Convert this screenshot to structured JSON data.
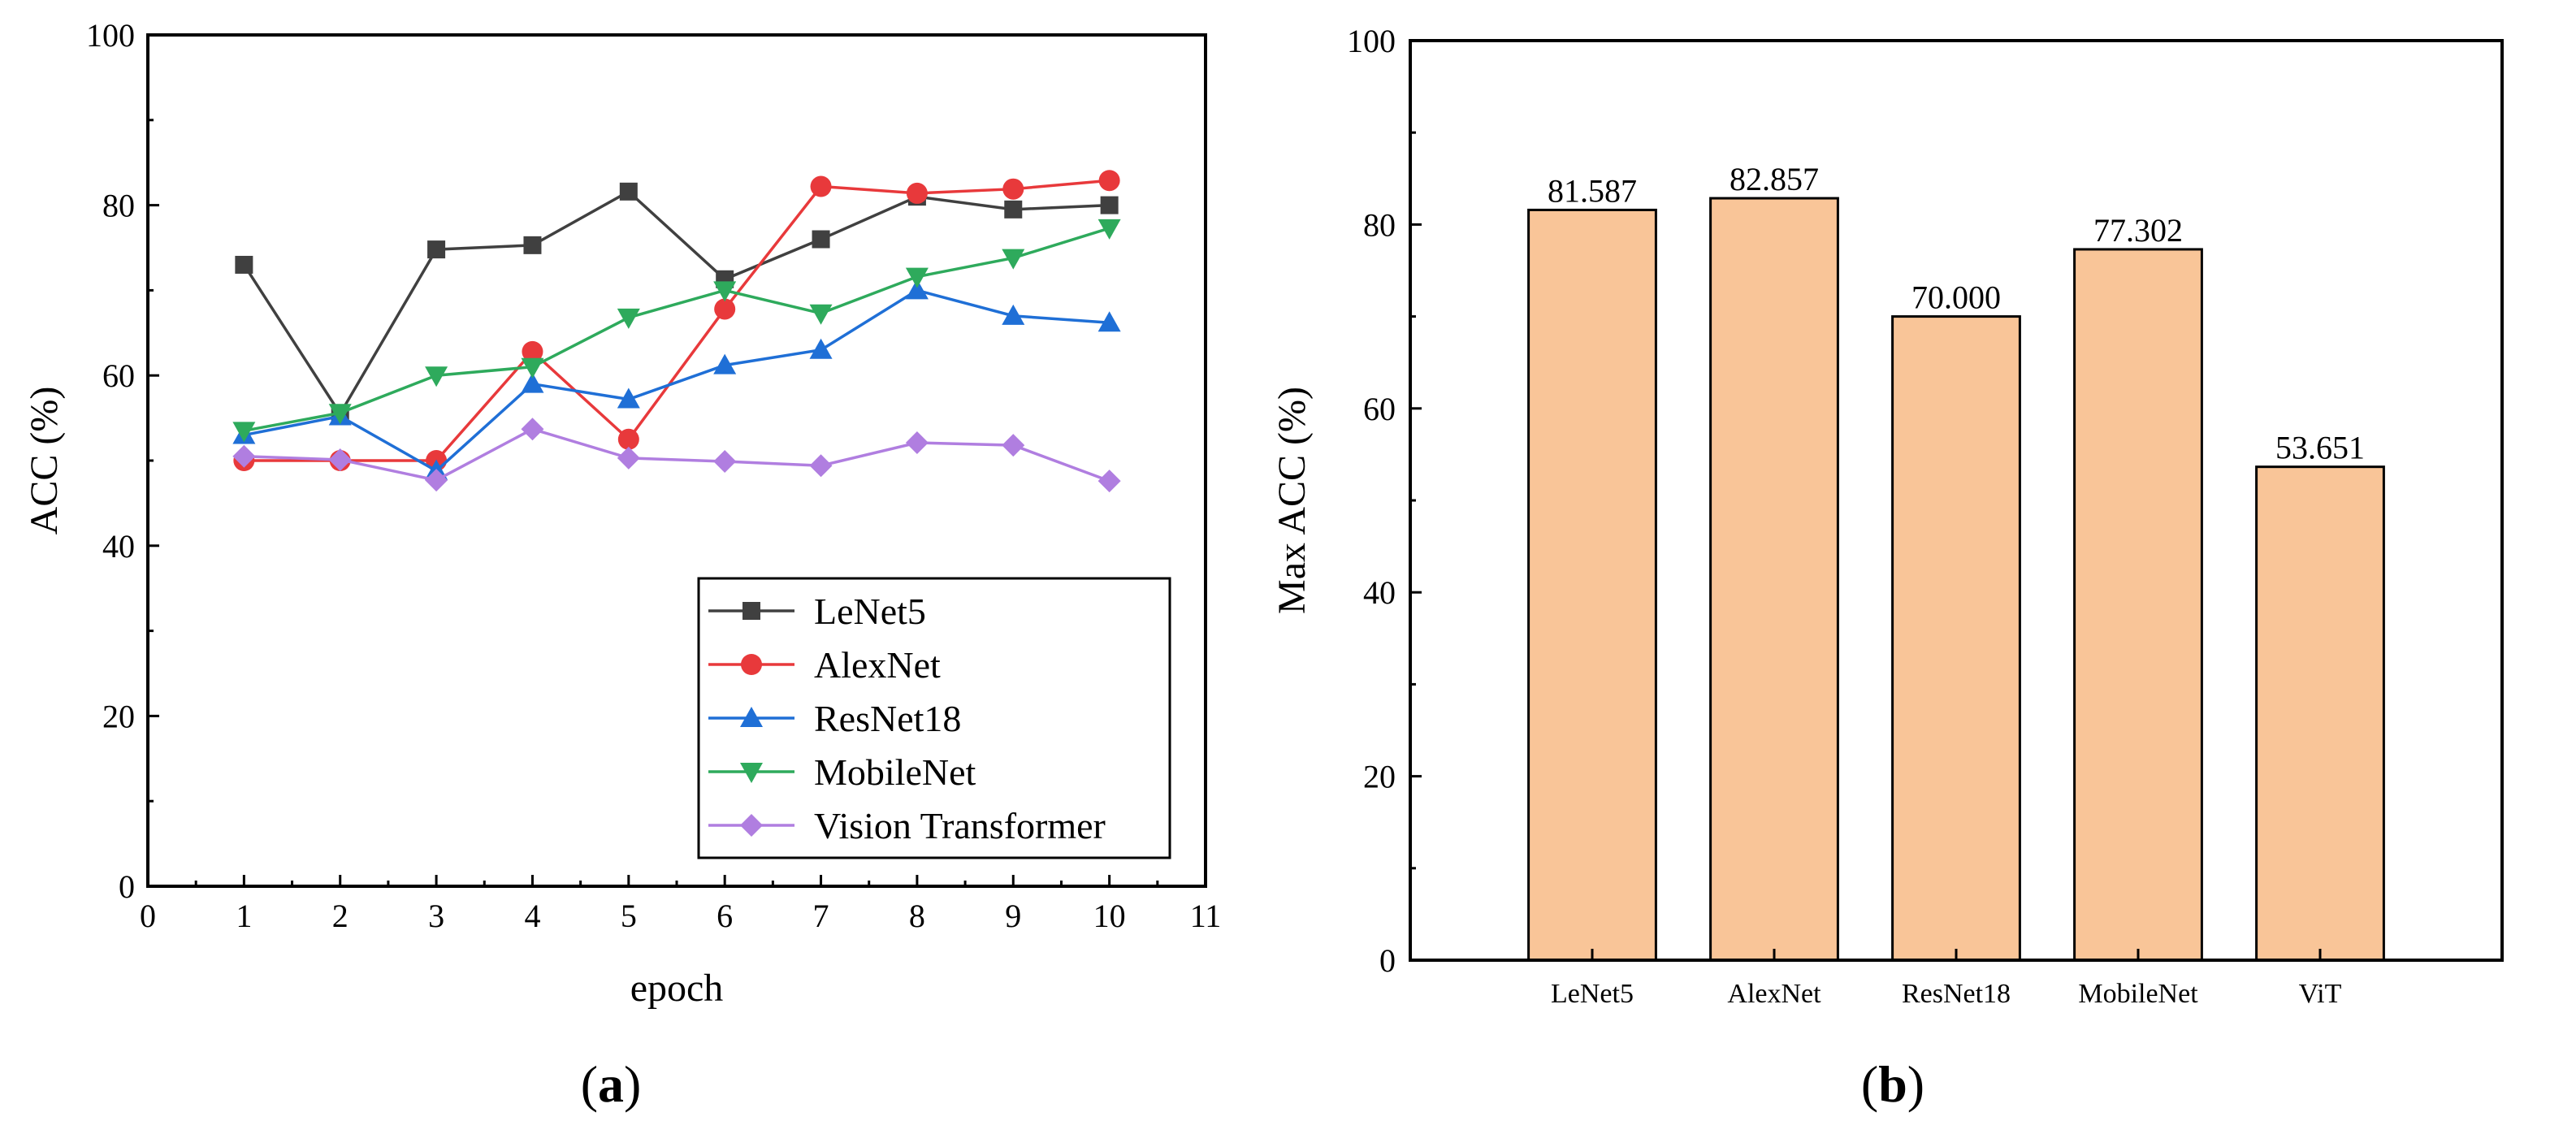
{
  "chart_data": [
    {
      "type": "line",
      "panel_label": "a",
      "title": "",
      "xlabel": "epoch",
      "ylabel": "ACC (%)",
      "xlim": [
        0,
        11
      ],
      "ylim": [
        0,
        100
      ],
      "xticks": [
        0,
        1,
        2,
        3,
        4,
        5,
        6,
        7,
        8,
        9,
        10,
        11
      ],
      "yticks": [
        0,
        20,
        40,
        60,
        80,
        100
      ],
      "grid": false,
      "legend_position": "bottom-right",
      "x": [
        1,
        2,
        3,
        4,
        5,
        6,
        7,
        8,
        9,
        10
      ],
      "series": [
        {
          "name": "LeNet5",
          "color": "#404040",
          "marker": "square",
          "values": [
            73.0,
            55.5,
            74.8,
            75.3,
            81.6,
            71.3,
            76.0,
            81.0,
            79.5,
            80.0
          ]
        },
        {
          "name": "AlexNet",
          "color": "#e8393b",
          "marker": "circle",
          "values": [
            50.0,
            50.0,
            50.0,
            62.8,
            52.5,
            67.8,
            82.2,
            81.4,
            81.9,
            82.9
          ]
        },
        {
          "name": "ResNet18",
          "color": "#1f6fd6",
          "marker": "triangle-up",
          "values": [
            53.0,
            55.2,
            48.8,
            59.0,
            57.2,
            61.2,
            63.0,
            70.0,
            67.0,
            66.2
          ]
        },
        {
          "name": "MobileNet",
          "color": "#2eaa5c",
          "marker": "triangle-down",
          "values": [
            53.5,
            55.6,
            60.0,
            61.0,
            66.8,
            70.0,
            67.3,
            71.6,
            73.8,
            77.3
          ]
        },
        {
          "name": "Vision Transformer",
          "color": "#b07ee0",
          "marker": "diamond",
          "values": [
            50.5,
            50.1,
            47.7,
            53.7,
            50.3,
            49.9,
            49.4,
            52.1,
            51.8,
            47.6
          ]
        }
      ]
    },
    {
      "type": "bar",
      "panel_label": "b",
      "title": "",
      "xlabel": "",
      "ylabel": "Max ACC (%)",
      "ylim": [
        0,
        100
      ],
      "yticks": [
        0,
        20,
        40,
        60,
        80,
        100
      ],
      "grid": false,
      "bar_color": "#f9c598",
      "categories": [
        "LeNet5",
        "AlexNet",
        "ResNet18",
        "MobileNet",
        "ViT"
      ],
      "values": [
        81.587,
        82.857,
        70.0,
        77.302,
        53.651
      ],
      "data_labels": [
        "81.587",
        "82.857",
        "70.000",
        "77.302",
        "53.651"
      ]
    }
  ]
}
